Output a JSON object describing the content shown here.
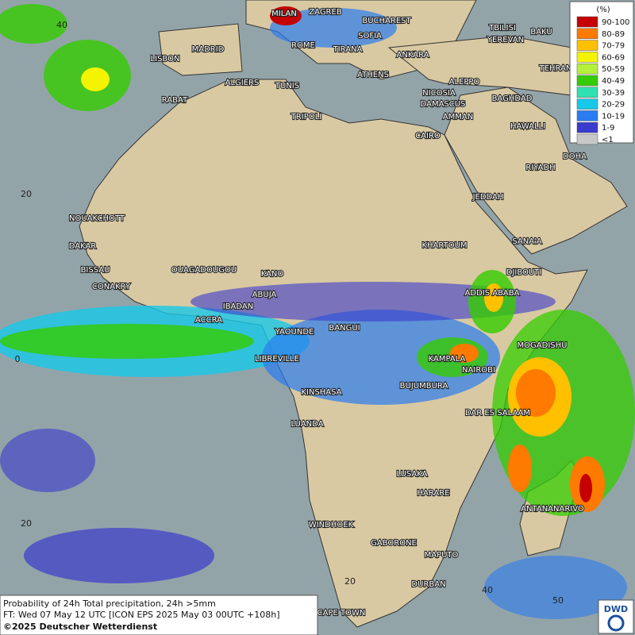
{
  "cities": [
    "MILAN",
    "ZAGREB",
    "BUCHAREST",
    "TBILISI",
    "BAKU",
    "SOFIA",
    "YEREVAN",
    "ROME",
    "TIRANA",
    "LISBON",
    "MADRID",
    "ANKARA",
    "TEHRAN",
    "ATHENS",
    "ALGIERS",
    "TUNIS",
    "ALEPPO",
    "RABAT",
    "NICOSIA",
    "BAGHDAD",
    "DAMASCUS",
    "TRIPOLI",
    "AMMAN",
    "HAWALLI",
    "CAIRO",
    "DOHA",
    "RIYADH",
    "JEDDAH",
    "NOUAKCHOTT",
    "KHARTOUM",
    "DAKAR",
    "SANA'A",
    "BISSAU",
    "OUAGADOUGOU",
    "KANO",
    "DJIBOUTI",
    "CONAKRY",
    "ABUJA",
    "ADDIS ABABA",
    "IBADAN",
    "ACCRA",
    "YAOUNDE",
    "BANGUI",
    "MOGADISHU",
    "LIBREVILLE",
    "KAMPALA",
    "NAIROBI",
    "KINSHASA",
    "BUJUMBURA",
    "DAR ES SALAAM",
    "LUANDA",
    "LUSAKA",
    "HARARE",
    "ANTANANARIVO",
    "WINDHOEK",
    "GABORONE",
    "MAPUTO",
    "DURBAN",
    "CAPE TOWN"
  ],
  "grid_labels": [
    "40",
    "20",
    "0",
    "20",
    "20",
    "40",
    "50"
  ],
  "legend": {
    "unit": "(%)",
    "items": [
      {
        "label": "90-100",
        "color": "#c40000"
      },
      {
        "label": "80-89",
        "color": "#ff7a00"
      },
      {
        "label": "70-79",
        "color": "#ffc000"
      },
      {
        "label": "60-69",
        "color": "#f4f400"
      },
      {
        "label": "50-59",
        "color": "#b4f03c"
      },
      {
        "label": "40-49",
        "color": "#34cc00"
      },
      {
        "label": "30-39",
        "color": "#30e0b0"
      },
      {
        "label": "20-29",
        "color": "#18c8e8"
      },
      {
        "label": "10-19",
        "color": "#2a7cf0"
      },
      {
        "label": "1-9",
        "color": "#3a3acc"
      },
      {
        "label": "<1",
        "color": "#c8c8c8"
      }
    ]
  },
  "caption": {
    "line1": "Probability of 24h Total precipitation, 24h >5mm",
    "line2": "FT: Wed 07 May 12 UTC [ICON EPS 2025 May 03 00UTC +108h]",
    "line3": "©2025 Deutscher Wetterdienst"
  },
  "logo": "DWD"
}
